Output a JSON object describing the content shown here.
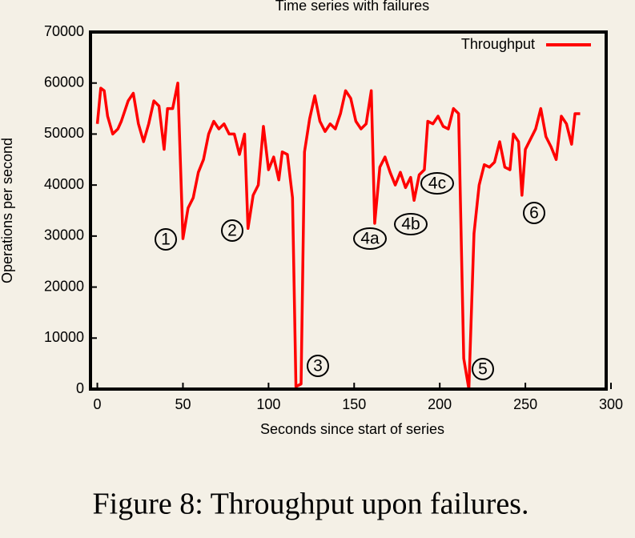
{
  "chart_data": {
    "type": "line",
    "title": "Time series with failures",
    "caption": "Figure 8: Throughput upon failures.",
    "xlabel": "Seconds since start of series",
    "ylabel": "Operations per second",
    "xlim": [
      -4,
      300
    ],
    "ylim": [
      0,
      70000
    ],
    "xticks": [
      0,
      50,
      100,
      150,
      200,
      250,
      300
    ],
    "yticks": [
      0,
      10000,
      20000,
      30000,
      40000,
      50000,
      60000,
      70000
    ],
    "legend": "upper right",
    "grid": false,
    "annotations": [
      "1",
      "2",
      "3",
      "4a",
      "4b",
      "4c",
      "5",
      "6"
    ],
    "series": [
      {
        "name": "Throughput",
        "color": "#ff0000",
        "x": [
          0,
          2,
          4,
          6,
          9,
          12,
          14,
          18,
          21,
          24,
          27,
          30,
          33,
          36,
          39,
          41,
          44,
          47,
          50,
          53,
          56,
          59,
          62,
          65,
          68,
          71,
          74,
          77,
          80,
          83,
          86,
          88,
          91,
          94,
          97,
          100,
          103,
          106,
          108,
          111,
          114,
          116,
          119,
          121,
          124,
          127,
          130,
          133,
          136,
          139,
          142,
          145,
          148,
          151,
          154,
          157,
          160,
          162,
          165,
          168,
          171,
          174,
          177,
          180,
          183,
          185,
          188,
          191,
          193,
          196,
          199,
          202,
          205,
          208,
          211,
          214,
          217,
          220,
          223,
          226,
          229,
          232,
          235,
          238,
          241,
          243,
          246,
          248,
          250,
          253,
          256,
          259,
          262,
          265,
          268,
          271,
          274,
          277,
          279,
          282
        ],
        "values": [
          52000,
          59000,
          58500,
          53500,
          50000,
          51000,
          52500,
          56500,
          58000,
          52000,
          48500,
          52000,
          56500,
          55500,
          47000,
          55000,
          55000,
          60000,
          29500,
          35500,
          37500,
          42500,
          45000,
          50000,
          52500,
          51000,
          52000,
          50000,
          50000,
          46000,
          50000,
          31500,
          38000,
          40000,
          51500,
          43000,
          45500,
          41000,
          46500,
          46000,
          37500,
          500,
          1000,
          46500,
          53000,
          57500,
          52500,
          50500,
          52000,
          51000,
          54000,
          58500,
          57000,
          52500,
          51000,
          52000,
          58500,
          32500,
          43500,
          45500,
          42500,
          40000,
          42500,
          39500,
          41500,
          37000,
          42000,
          43000,
          52500,
          52000,
          53500,
          51500,
          51000,
          55000,
          54000,
          6000,
          0,
          30500,
          40000,
          44000,
          43500,
          44500,
          48500,
          43500,
          43000,
          50000,
          48500,
          38000,
          47000,
          49000,
          51000,
          55000,
          49500,
          47500,
          45000,
          53500,
          52000,
          48000,
          54000,
          54000
        ]
      }
    ]
  }
}
